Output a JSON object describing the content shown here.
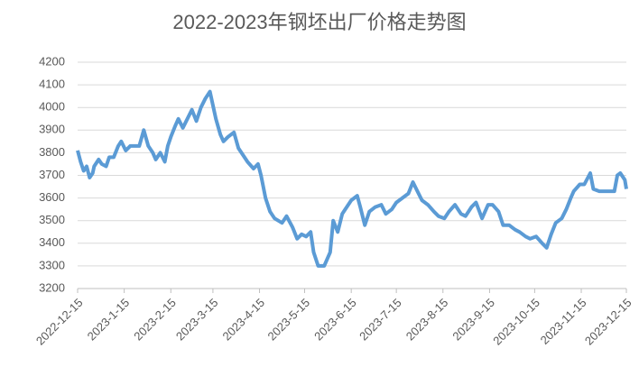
{
  "chart_data": {
    "type": "line",
    "title": "2022-2023年钢坯出厂价格走势图",
    "x": [
      "2022-12-15",
      "2022-12-17",
      "2022-12-19",
      "2022-12-21",
      "2022-12-23",
      "2022-12-25",
      "2022-12-26",
      "2022-12-29",
      "2022-12-31",
      "2023-1-3",
      "2023-1-5",
      "2023-1-8",
      "2023-1-11",
      "2023-1-13",
      "2023-1-16",
      "2023-1-19",
      "2023-1-22",
      "2023-1-25",
      "2023-1-28",
      "2023-1-31",
      "2023-2-3",
      "2023-2-5",
      "2023-2-8",
      "2023-2-11",
      "2023-2-13",
      "2023-2-15",
      "2023-2-18",
      "2023-2-20",
      "2023-2-23",
      "2023-2-26",
      "2023-3-1",
      "2023-3-4",
      "2023-3-7",
      "2023-3-10",
      "2023-3-13",
      "2023-3-15",
      "2023-3-17",
      "2023-3-20",
      "2023-3-22",
      "2023-3-25",
      "2023-3-29",
      "2023-4-1",
      "2023-4-4",
      "2023-4-7",
      "2023-4-11",
      "2023-4-14",
      "2023-4-16",
      "2023-4-19",
      "2023-4-22",
      "2023-4-25",
      "2023-4-30",
      "2023-5-3",
      "2023-5-7",
      "2023-5-10",
      "2023-5-13",
      "2023-5-16",
      "2023-5-19",
      "2023-5-21",
      "2023-5-24",
      "2023-5-28",
      "2023-6-1",
      "2023-6-3",
      "2023-6-6",
      "2023-6-9",
      "2023-6-12",
      "2023-6-15",
      "2023-6-19",
      "2023-6-21",
      "2023-6-24",
      "2023-6-27",
      "2023-7-1",
      "2023-7-5",
      "2023-7-8",
      "2023-7-12",
      "2023-7-15",
      "2023-7-19",
      "2023-7-23",
      "2023-7-26",
      "2023-7-29",
      "2023-8-1",
      "2023-8-5",
      "2023-8-9",
      "2023-8-12",
      "2023-8-16",
      "2023-8-19",
      "2023-8-23",
      "2023-8-27",
      "2023-8-30",
      "2023-9-3",
      "2023-9-6",
      "2023-9-10",
      "2023-9-14",
      "2023-9-17",
      "2023-9-21",
      "2023-9-24",
      "2023-9-28",
      "2023-10-2",
      "2023-10-5",
      "2023-10-9",
      "2023-10-12",
      "2023-10-16",
      "2023-10-20",
      "2023-10-23",
      "2023-10-26",
      "2023-10-29",
      "2023-11-2",
      "2023-11-5",
      "2023-11-8",
      "2023-11-10",
      "2023-11-14",
      "2023-11-17",
      "2023-11-21",
      "2023-11-23",
      "2023-11-27",
      "2023-12-1",
      "2023-12-4",
      "2023-12-7",
      "2023-12-9",
      "2023-12-11",
      "2023-12-14",
      "2023-12-15"
    ],
    "series": [
      {
        "name": "钢坯出厂价格",
        "color": "#5b9bd5",
        "values": [
          3810,
          3760,
          3720,
          3740,
          3690,
          3710,
          3740,
          3770,
          3750,
          3740,
          3780,
          3780,
          3830,
          3850,
          3810,
          3830,
          3830,
          3830,
          3900,
          3830,
          3800,
          3770,
          3800,
          3760,
          3830,
          3870,
          3920,
          3950,
          3910,
          3950,
          3990,
          3940,
          4000,
          4040,
          4070,
          4010,
          3950,
          3880,
          3850,
          3870,
          3890,
          3820,
          3790,
          3760,
          3730,
          3750,
          3700,
          3600,
          3540,
          3510,
          3490,
          3520,
          3470,
          3420,
          3440,
          3430,
          3450,
          3360,
          3300,
          3300,
          3360,
          3500,
          3450,
          3530,
          3560,
          3590,
          3610,
          3560,
          3480,
          3540,
          3560,
          3570,
          3530,
          3550,
          3580,
          3600,
          3620,
          3670,
          3630,
          3590,
          3570,
          3540,
          3520,
          3510,
          3540,
          3570,
          3530,
          3520,
          3560,
          3580,
          3510,
          3570,
          3570,
          3540,
          3480,
          3480,
          3460,
          3450,
          3430,
          3420,
          3430,
          3400,
          3380,
          3440,
          3490,
          3510,
          3550,
          3600,
          3630,
          3660,
          3660,
          3710,
          3640,
          3630,
          3630,
          3630,
          3630,
          3700,
          3710,
          3680,
          3640
        ]
      }
    ],
    "xlim": [
      "2022-12-15",
      "2023-12-15"
    ],
    "xticks": [
      "2022-12-15",
      "2023-1-15",
      "2023-2-15",
      "2023-3-15",
      "2023-4-15",
      "2023-5-15",
      "2023-6-15",
      "2023-7-15",
      "2023-8-15",
      "2023-9-15",
      "2023-10-15",
      "2023-11-15",
      "2023-12-15"
    ],
    "ylim": [
      3200,
      4200
    ],
    "yticks": [
      3200,
      3300,
      3400,
      3500,
      3600,
      3700,
      3800,
      3900,
      4000,
      4100,
      4200
    ],
    "grid": true
  }
}
